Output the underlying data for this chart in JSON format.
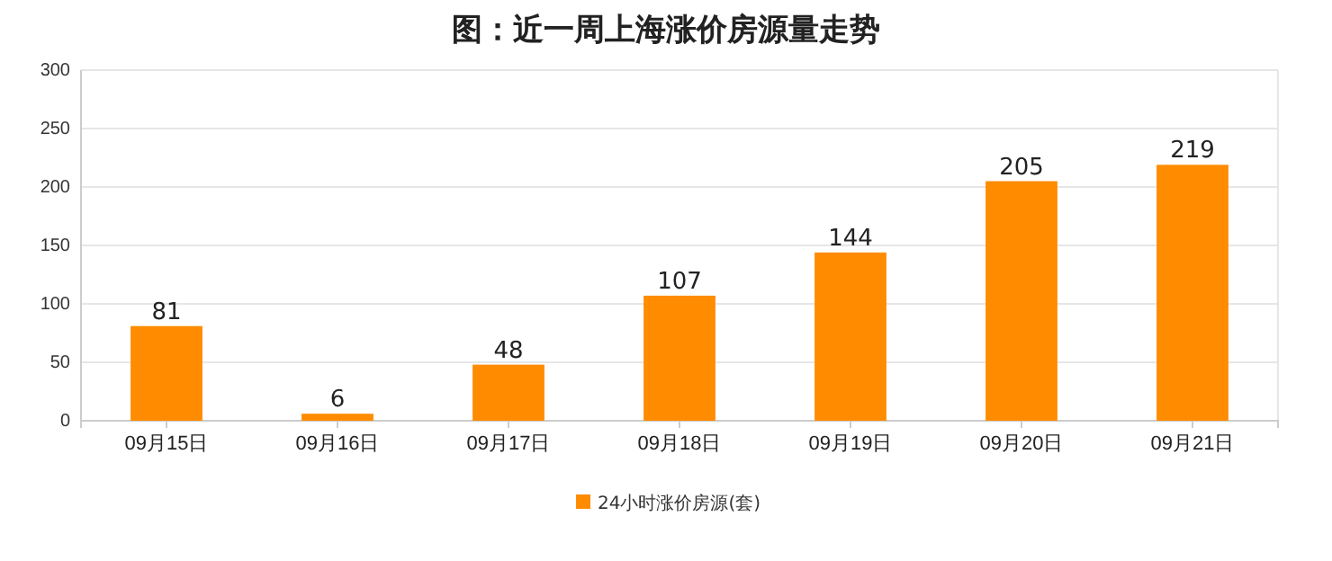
{
  "chart_data": {
    "type": "bar",
    "title": "图：近一周上海涨价房源量走势",
    "categories": [
      "09月15日",
      "09月16日",
      "09月17日",
      "09月18日",
      "09月19日",
      "09月20日",
      "09月21日"
    ],
    "series": [
      {
        "name": "24小时涨价房源(套)",
        "color": "#ff8c00",
        "values": [
          81,
          6,
          48,
          107,
          144,
          205,
          219
        ]
      }
    ],
    "ylim": [
      0,
      300
    ],
    "yticks": [
      0,
      50,
      100,
      150,
      200,
      250,
      300
    ],
    "grid": "y",
    "legend": "bottom",
    "data_labels": true
  }
}
